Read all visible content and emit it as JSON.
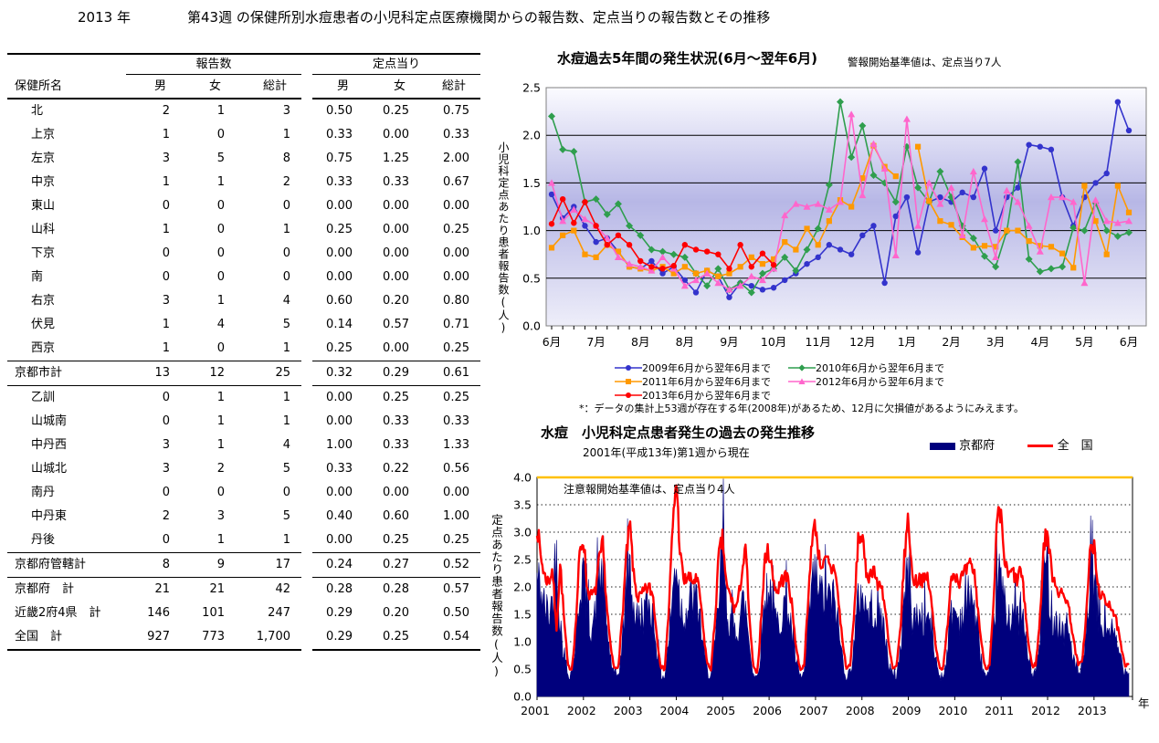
{
  "page_title": {
    "year": "2013 年",
    "week": "第43週",
    "rest": "の保健所別水痘患者の小児科定点医療機関からの報告数、定点当りの報告数とその推移"
  },
  "table": {
    "name_label": "保健所名",
    "reports_label": "報告数",
    "per_label": "定点当り",
    "columns": [
      "男",
      "女",
      "総計",
      "男",
      "女",
      "総計"
    ],
    "rows": [
      {
        "name": "北",
        "cls": "r-indent",
        "values": [
          "2",
          "1",
          "3",
          "0.50",
          "0.25",
          "0.75"
        ]
      },
      {
        "name": "上京",
        "cls": "r-indent",
        "values": [
          "1",
          "0",
          "1",
          "0.33",
          "0.00",
          "0.33"
        ]
      },
      {
        "name": "左京",
        "cls": "r-indent",
        "values": [
          "3",
          "5",
          "8",
          "0.75",
          "1.25",
          "2.00"
        ]
      },
      {
        "name": "中京",
        "cls": "r-indent",
        "values": [
          "1",
          "1",
          "2",
          "0.33",
          "0.33",
          "0.67"
        ]
      },
      {
        "name": "東山",
        "cls": "r-indent",
        "values": [
          "0",
          "0",
          "0",
          "0.00",
          "0.00",
          "0.00"
        ]
      },
      {
        "name": "山科",
        "cls": "r-indent",
        "values": [
          "1",
          "0",
          "1",
          "0.25",
          "0.00",
          "0.25"
        ]
      },
      {
        "name": "下京",
        "cls": "r-indent",
        "values": [
          "0",
          "0",
          "0",
          "0.00",
          "0.00",
          "0.00"
        ]
      },
      {
        "name": "南",
        "cls": "r-indent",
        "values": [
          "0",
          "0",
          "0",
          "0.00",
          "0.00",
          "0.00"
        ]
      },
      {
        "name": "右京",
        "cls": "r-indent",
        "values": [
          "3",
          "1",
          "4",
          "0.60",
          "0.20",
          "0.80"
        ]
      },
      {
        "name": "伏見",
        "cls": "r-indent",
        "values": [
          "1",
          "4",
          "5",
          "0.14",
          "0.57",
          "0.71"
        ]
      },
      {
        "name": "西京",
        "cls": "r-indent sec",
        "values": [
          "1",
          "0",
          "1",
          "0.25",
          "0.00",
          "0.25"
        ]
      },
      {
        "name": "京都市計",
        "cls": "r-total sec",
        "values": [
          "13",
          "12",
          "25",
          "0.32",
          "0.29",
          "0.61"
        ]
      },
      {
        "name": "乙訓",
        "cls": "r-indent",
        "values": [
          "0",
          "1",
          "1",
          "0.00",
          "0.25",
          "0.25"
        ]
      },
      {
        "name": "山城南",
        "cls": "r-indent",
        "values": [
          "0",
          "1",
          "1",
          "0.00",
          "0.33",
          "0.33"
        ]
      },
      {
        "name": "中丹西",
        "cls": "r-indent",
        "values": [
          "3",
          "1",
          "4",
          "1.00",
          "0.33",
          "1.33"
        ]
      },
      {
        "name": "山城北",
        "cls": "r-indent",
        "values": [
          "3",
          "2",
          "5",
          "0.33",
          "0.22",
          "0.56"
        ]
      },
      {
        "name": "南丹",
        "cls": "r-indent",
        "values": [
          "0",
          "0",
          "0",
          "0.00",
          "0.00",
          "0.00"
        ]
      },
      {
        "name": "中丹東",
        "cls": "r-indent",
        "values": [
          "2",
          "3",
          "5",
          "0.40",
          "0.60",
          "1.00"
        ]
      },
      {
        "name": "丹後",
        "cls": "r-indent sec",
        "values": [
          "0",
          "1",
          "1",
          "0.00",
          "0.25",
          "0.25"
        ]
      },
      {
        "name": "京都府管轄計",
        "cls": "r-total sec",
        "values": [
          "8",
          "9",
          "17",
          "0.24",
          "0.27",
          "0.52"
        ]
      },
      {
        "name": "京都府　計",
        "cls": "r-total",
        "values": [
          "21",
          "21",
          "42",
          "0.28",
          "0.28",
          "0.57"
        ]
      },
      {
        "name": "近畿2府4県　計",
        "cls": "r-total",
        "values": [
          "146",
          "101",
          "247",
          "0.29",
          "0.20",
          "0.50"
        ]
      },
      {
        "name": "全国　計",
        "cls": "r-total last",
        "values": [
          "927",
          "773",
          "1,700",
          "0.29",
          "0.25",
          "0.54"
        ]
      }
    ]
  },
  "chart_data": [
    {
      "type": "line",
      "title": "水痘過去5年間の発生状況(6月～翌年6月)",
      "note": "警報開始基準値は、定点当り7人",
      "ylabel": "小児科定点あたり患者報告数(人)",
      "footnote": "*：データの集計上53週が存在する年(2008年)があるため、12月に欠損値があるようにみえます。",
      "ylim": [
        0,
        2.5
      ],
      "ytick_step": 0.5,
      "grid": true,
      "x_month_labels": [
        "6月",
        "7月",
        "8月",
        "8月",
        "9月",
        "10月",
        "11月",
        "12月",
        "1月",
        "2月",
        "3月",
        "4月",
        "5月",
        "6月"
      ],
      "legend_columns": [
        [
          0,
          2,
          4
        ],
        [
          1,
          3
        ]
      ],
      "series": [
        {
          "name": "2009年6月から翌年6月まで",
          "color": "#3333cc",
          "marker": "circle",
          "values": [
            1.38,
            1.13,
            1.25,
            1.05,
            0.88,
            0.92,
            0.78,
            0.62,
            0.6,
            0.68,
            0.55,
            0.62,
            0.48,
            0.35,
            0.58,
            0.52,
            0.3,
            0.45,
            0.42,
            0.38,
            0.4,
            0.48,
            0.55,
            0.65,
            0.72,
            0.85,
            0.8,
            0.75,
            0.95,
            1.05,
            0.45,
            1.15,
            1.35,
            0.77,
            1.3,
            1.35,
            1.3,
            1.4,
            1.35,
            1.65,
            1.0,
            1.35,
            1.45,
            1.9,
            1.88,
            1.85,
            1.35,
            1.05,
            1.35,
            1.5,
            1.6,
            2.35,
            2.05
          ]
        },
        {
          "name": "2010年6月から翌年6月まで",
          "color": "#2f9e4e",
          "marker": "diamond",
          "values": [
            2.2,
            1.85,
            1.83,
            1.3,
            1.33,
            1.17,
            1.28,
            1.05,
            0.95,
            0.8,
            0.78,
            0.75,
            0.72,
            0.55,
            0.42,
            0.6,
            0.38,
            0.45,
            0.35,
            0.55,
            0.6,
            0.72,
            0.58,
            0.8,
            1.02,
            1.48,
            2.35,
            1.77,
            2.1,
            1.58,
            1.5,
            1.3,
            1.88,
            1.45,
            1.3,
            1.62,
            1.35,
            1.05,
            0.92,
            0.73,
            0.62,
            0.99,
            1.72,
            0.7,
            0.57,
            0.6,
            0.62,
            1.03,
            1.0,
            1.29,
            1.0,
            0.94,
            0.98
          ]
        },
        {
          "name": "2011年6月から翌年6月まで",
          "color": "#ff9900",
          "marker": "square",
          "values": [
            0.82,
            0.95,
            1.0,
            0.75,
            0.72,
            0.85,
            0.78,
            0.62,
            0.6,
            0.58,
            0.62,
            0.55,
            0.62,
            0.55,
            0.58,
            0.52,
            0.55,
            0.62,
            0.72,
            0.65,
            0.7,
            0.88,
            0.8,
            1.02,
            0.85,
            1.1,
            1.32,
            1.25,
            1.55,
            1.89,
            1.67,
            1.57,
            null,
            1.88,
            1.31,
            1.1,
            1.06,
            0.93,
            0.82,
            0.84,
            0.83,
            1.0,
            1.0,
            0.89,
            0.84,
            0.83,
            0.76,
            0.61,
            1.47,
            1.1,
            0.75,
            1.47,
            1.19
          ]
        },
        {
          "name": "2012年6月から翌年6月まで",
          "color": "#ff66cc",
          "marker": "triangle",
          "values": [
            1.5,
            1.1,
            1.22,
            1.12,
            1.05,
            0.92,
            0.72,
            0.65,
            0.62,
            0.58,
            0.72,
            0.6,
            0.42,
            0.48,
            0.55,
            0.45,
            0.38,
            0.42,
            0.52,
            0.48,
            0.6,
            1.16,
            1.28,
            1.25,
            1.28,
            1.22,
            1.3,
            2.22,
            1.37,
            1.91,
            1.65,
            0.74,
            2.17,
            1.05,
            1.5,
            1.28,
            1.45,
            0.95,
            1.62,
            1.12,
            0.72,
            1.42,
            1.3,
            1.05,
            0.78,
            1.35,
            1.35,
            1.3,
            0.45,
            1.32,
            1.1,
            1.08,
            1.1
          ]
        },
        {
          "name": "2013年6月から翌年6月まで",
          "color": "#ff0000",
          "marker": "circle",
          "values": [
            1.07,
            1.33,
            1.08,
            1.3,
            1.05,
            0.85,
            0.95,
            0.85,
            0.68,
            0.62,
            0.6,
            0.63,
            0.85,
            0.8,
            0.78,
            0.75,
            0.6,
            0.85,
            0.62,
            0.76,
            0.64
          ]
        }
      ]
    },
    {
      "type": "area",
      "title": "水痘　小児科定点患者発生の過去の発生推移",
      "subtitle": "2001年(平成13年)第1週から現在",
      "annotation": "注意報開始基準値は、定点当り4人",
      "ylabel": "定点あたり患者報告数(人)",
      "xlabel": "年",
      "ylim": [
        0,
        4.0
      ],
      "ytick_step": 0.5,
      "threshold": {
        "value": 4.0,
        "color": "#ffc000"
      },
      "years": [
        "2001",
        "2002",
        "2003",
        "2004",
        "2005",
        "2006",
        "2007",
        "2008",
        "2009",
        "2010",
        "2011",
        "2012",
        "2013"
      ],
      "series": [
        {
          "name": "京都府",
          "type": "area",
          "color": "#00007d",
          "monthly": [
            2.15,
            1.95,
            1.6,
            1.5,
            1.75,
            2.8,
            1.3,
            0.8,
            0.4,
            0.45,
            1.0,
            1.9,
            2.35,
            1.5,
            1.3,
            1.45,
            2.3,
            2.1,
            1.3,
            0.7,
            0.35,
            0.4,
            0.9,
            2.0,
            2.4,
            1.6,
            1.4,
            1.5,
            1.6,
            1.7,
            1.5,
            0.9,
            0.4,
            0.35,
            1.0,
            1.8,
            2.6,
            1.7,
            1.5,
            1.6,
            1.8,
            1.75,
            1.5,
            0.9,
            0.45,
            0.4,
            0.9,
            1.7,
            2.9,
            1.6,
            1.4,
            1.2,
            1.3,
            1.7,
            1.6,
            0.9,
            0.4,
            0.35,
            1.0,
            1.8,
            2.1,
            1.6,
            1.3,
            1.5,
            1.7,
            1.6,
            1.1,
            0.6,
            0.35,
            0.4,
            1.1,
            2.0,
            2.2,
            1.9,
            1.8,
            1.9,
            1.7,
            1.8,
            1.2,
            0.7,
            0.35,
            0.45,
            1.0,
            1.7,
            2.0,
            1.6,
            1.5,
            1.7,
            1.4,
            1.5,
            1.1,
            0.6,
            0.35,
            0.4,
            0.9,
            1.9,
            2.3,
            1.5,
            1.4,
            1.5,
            1.4,
            1.5,
            1.2,
            0.7,
            0.4,
            0.35,
            0.8,
            1.5,
            1.6,
            1.4,
            1.5,
            1.6,
            2.05,
            1.6,
            1.1,
            0.6,
            0.35,
            0.4,
            1.1,
            2.3,
            2.05,
            1.6,
            1.5,
            1.6,
            1.4,
            1.6,
            1.2,
            0.7,
            0.4,
            0.45,
            1.0,
            2.4,
            2.3,
            1.6,
            1.4,
            1.3,
            1.2,
            1.3,
            1.0,
            0.6,
            0.4,
            0.5,
            1.1,
            2.2,
            2.1,
            1.4,
            1.3,
            1.2,
            1.3,
            1.1,
            0.9,
            0.7,
            0.45,
            0.55
          ]
        },
        {
          "name": "全　国",
          "type": "line",
          "color": "#ff0000",
          "monthly": [
            3.15,
            2.55,
            2.2,
            2.1,
            2.35,
            1.2,
            2.45,
            1.4,
            0.55,
            0.5,
            1.3,
            2.6,
            2.93,
            1.95,
            1.85,
            1.9,
            2.45,
            2.78,
            1.7,
            0.9,
            0.5,
            0.55,
            1.4,
            2.5,
            3.17,
            2.2,
            1.8,
            1.85,
            1.95,
            2.0,
            1.85,
            1.1,
            0.55,
            0.5,
            1.5,
            3.0,
            4.0,
            2.6,
            2.1,
            2.2,
            2.1,
            2.15,
            1.95,
            1.2,
            0.6,
            0.5,
            1.4,
            2.6,
            2.9,
            2.0,
            1.85,
            1.6,
            1.75,
            2.3,
            2.7,
            1.3,
            0.5,
            0.45,
            1.5,
            2.6,
            2.65,
            2.2,
            1.9,
            2.1,
            2.2,
            2.15,
            1.6,
            0.9,
            0.5,
            0.55,
            1.6,
            2.9,
            3.15,
            2.5,
            2.4,
            2.5,
            2.3,
            2.4,
            1.7,
            1.0,
            0.5,
            0.6,
            1.5,
            2.9,
            2.95,
            2.3,
            2.2,
            2.4,
            2.0,
            2.1,
            1.6,
            0.9,
            0.5,
            0.55,
            1.3,
            2.6,
            3.3,
            2.2,
            2.1,
            2.2,
            2.1,
            2.2,
            1.7,
            1.0,
            0.55,
            0.5,
            1.2,
            2.2,
            2.3,
            2.1,
            2.2,
            2.3,
            2.4,
            2.3,
            1.6,
            0.9,
            0.5,
            0.6,
            1.6,
            3.3,
            3.25,
            2.4,
            2.2,
            2.3,
            2.1,
            2.35,
            1.8,
            1.0,
            0.55,
            0.6,
            1.4,
            2.8,
            3.0,
            2.3,
            2.1,
            1.9,
            1.85,
            1.8,
            1.4,
            0.9,
            0.55,
            0.7,
            1.5,
            2.7,
            2.75,
            2.0,
            1.85,
            1.7,
            1.75,
            1.55,
            1.3,
            0.9,
            0.55,
            0.65
          ]
        }
      ]
    }
  ]
}
